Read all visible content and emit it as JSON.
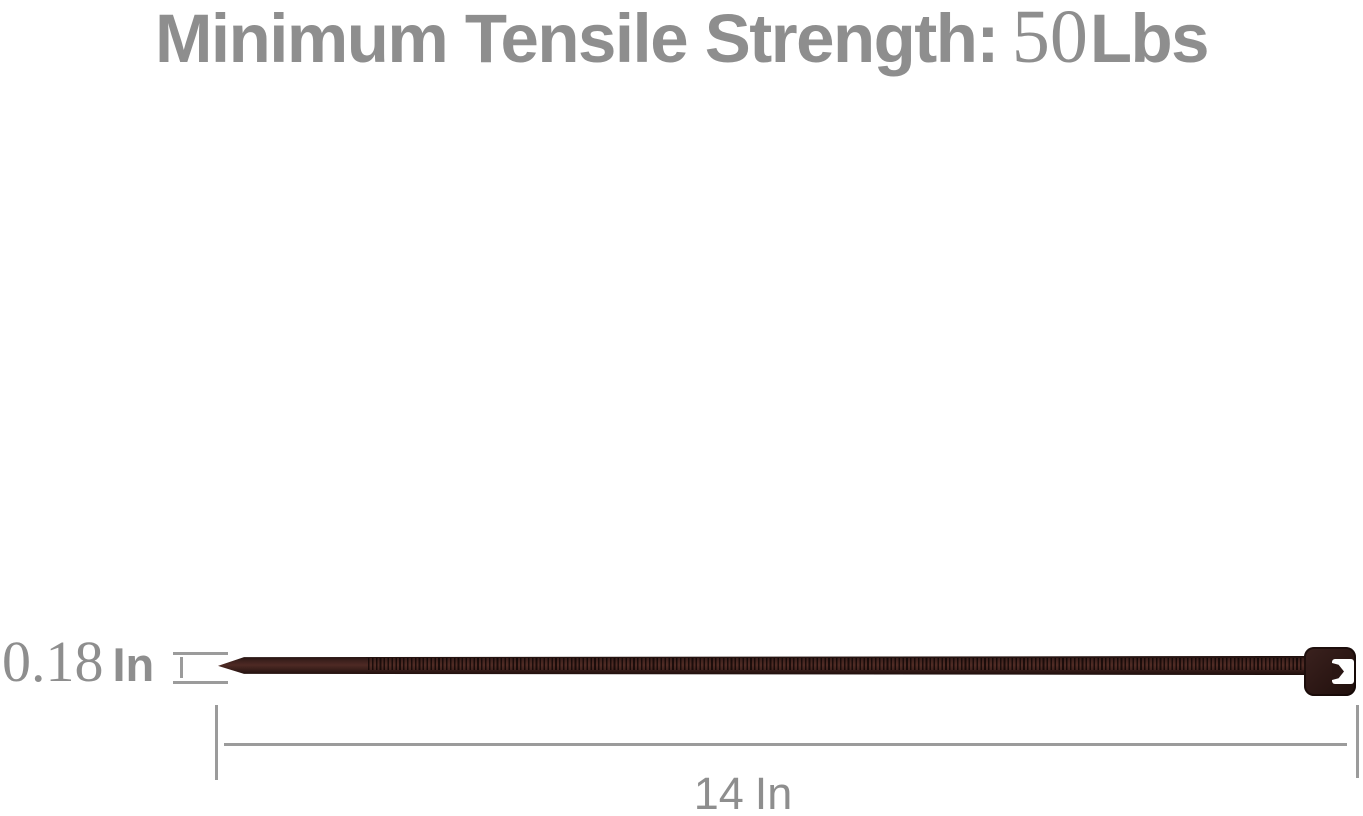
{
  "title": {
    "label": "Minimum Tensile Strength:",
    "value": "50",
    "unit": "Lbs"
  },
  "dimensions": {
    "width": {
      "value": "0.18",
      "unit": "In"
    },
    "length": {
      "value": "14",
      "unit": "In"
    }
  },
  "product": {
    "type": "cable-zip-tie",
    "orientation": "horizontal",
    "tip_side": "left",
    "head_side": "right"
  },
  "colors": {
    "text_gray": "#8e8e8e",
    "line_gray": "#9b9b9b",
    "tie_dark": "#1d0d0b",
    "tie_body": "#3a1f1c",
    "tie_highlight": "#4e2a24",
    "slot_white": "#ffffff"
  }
}
